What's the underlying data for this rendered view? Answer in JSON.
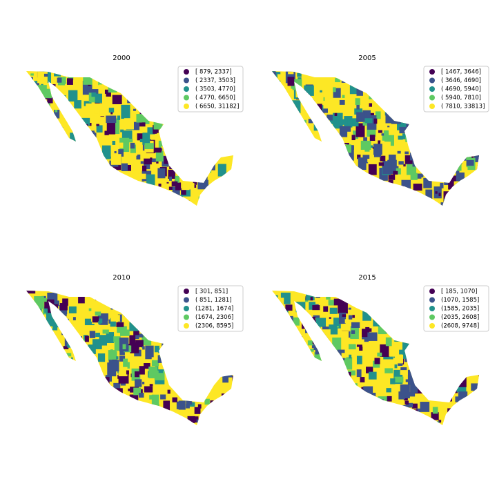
{
  "panels": [
    {
      "title": "2000",
      "legend": [
        {
          "label": "[  879,  2337]",
          "color": "#440154"
        },
        {
          "label": "( 2337,  3503]",
          "color": "#3b528b"
        },
        {
          "label": "( 3503,  4770]",
          "color": "#21918c"
        },
        {
          "label": "( 4770,  6650]",
          "color": "#5ec962"
        },
        {
          "label": "( 6650, 31182]",
          "color": "#fde725"
        }
      ]
    },
    {
      "title": "2005",
      "legend": [
        {
          "label": "[ 1467,  3646]",
          "color": "#440154"
        },
        {
          "label": "( 3646,  4690]",
          "color": "#3b528b"
        },
        {
          "label": "( 4690,  5940]",
          "color": "#21918c"
        },
        {
          "label": "( 5940,  7810]",
          "color": "#5ec962"
        },
        {
          "label": "( 7810, 33813]",
          "color": "#fde725"
        }
      ]
    },
    {
      "title": "2010",
      "legend": [
        {
          "label": "[ 301,  851]",
          "color": "#440154"
        },
        {
          "label": "( 851, 1281]",
          "color": "#3b528b"
        },
        {
          "label": "(1281, 1674]",
          "color": "#21918c"
        },
        {
          "label": "(1674, 2306]",
          "color": "#5ec962"
        },
        {
          "label": "(2306, 8595]",
          "color": "#fde725"
        }
      ]
    },
    {
      "title": "2015",
      "legend": [
        {
          "label": "[ 185, 1070]",
          "color": "#440154"
        },
        {
          "label": "(1070, 1585]",
          "color": "#3b528b"
        },
        {
          "label": "(1585, 2035]",
          "color": "#21918c"
        },
        {
          "label": "(2035, 2608]",
          "color": "#5ec962"
        },
        {
          "label": "(2608, 9748]",
          "color": "#fde725"
        }
      ]
    }
  ]
}
